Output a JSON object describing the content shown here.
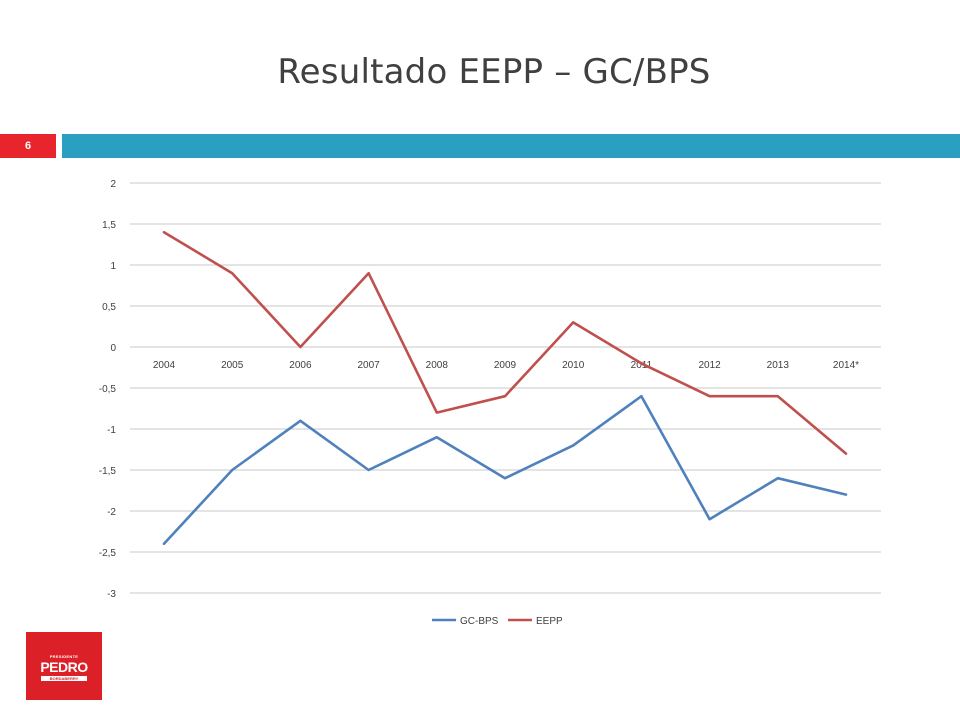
{
  "slide": {
    "title": "Resultado EEPP – GC/BPS",
    "number": "6",
    "logo": {
      "top_text": "PRESIDENTE",
      "main_text": "PEDRO",
      "bottom_text": "BORDABERRY"
    }
  },
  "colors": {
    "title_bar": "#2a9fc1",
    "slide_number_bg": "#e8242d",
    "gc_bps": "#4f81bd",
    "eepp": "#c0504d",
    "logo_bg": "#dc2028"
  },
  "chart_data": {
    "type": "line",
    "categories": [
      "2004",
      "2005",
      "2006",
      "2007",
      "2008",
      "2009",
      "2010",
      "2011",
      "2012",
      "2013",
      "2014*"
    ],
    "series": [
      {
        "name": "GC-BPS",
        "color": "#4f81bd",
        "values": [
          -2.4,
          -1.5,
          -0.9,
          -1.5,
          -1.1,
          -1.6,
          -1.2,
          -0.6,
          -2.1,
          -1.6,
          -1.8
        ]
      },
      {
        "name": "EEPP",
        "color": "#c0504d",
        "values": [
          1.4,
          0.9,
          0.0,
          0.9,
          -0.8,
          -0.6,
          0.3,
          -0.2,
          -0.6,
          -0.6,
          -1.3
        ]
      }
    ],
    "yticks": [
      "2",
      "1,5",
      "1",
      "0,5",
      "0",
      "-0,5",
      "-1",
      "-1,5",
      "-2",
      "-2,5",
      "-3"
    ],
    "ylim": [
      -3,
      2
    ],
    "grid": true,
    "legend_position": "bottom",
    "category_labels_at": "zero-line"
  }
}
